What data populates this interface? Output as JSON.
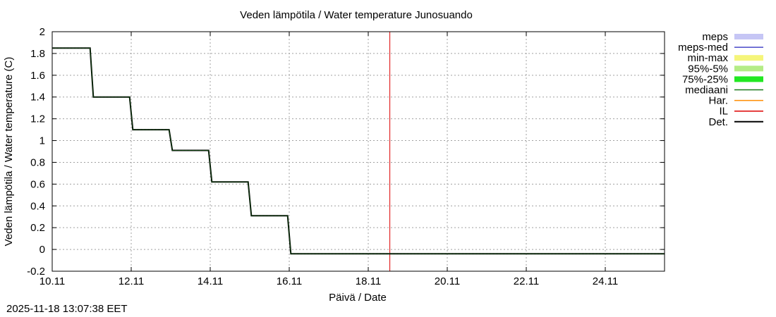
{
  "chart_data": {
    "type": "line",
    "title": "Veden lämpötila / Water temperature Junosuando",
    "xlabel": "Päivä / Date",
    "ylabel": "Veden lämpötila / Water temperature (C)",
    "xlim": [
      "2025-11-10",
      "2025-11-25 12:00"
    ],
    "ylim": [
      -0.2,
      2
    ],
    "grid": true,
    "legend_placement": "right",
    "x_ticks": [
      "10.11",
      "12.11",
      "14.11",
      "16.11",
      "18.11",
      "20.11",
      "22.11",
      "24.11"
    ],
    "y_ticks": [
      "-0.2",
      "0",
      "0.2",
      "0.4",
      "0.6",
      "0.8",
      "1",
      "1.2",
      "1.4",
      "1.6",
      "1.8",
      "2"
    ],
    "legend": [
      {
        "label": "meps",
        "color": "#c6c6f5",
        "style": "band"
      },
      {
        "label": "meps-med",
        "color": "#4848c8",
        "style": "line"
      },
      {
        "label": "min-max",
        "color": "#f5f57a",
        "style": "band"
      },
      {
        "label": "95%-5%",
        "color": "#b4ec86",
        "style": "band"
      },
      {
        "label": "75%-25%",
        "color": "#22e822",
        "style": "band"
      },
      {
        "label": "mediaani",
        "color": "#1a7a1a",
        "style": "line"
      },
      {
        "label": "Har.",
        "color": "#ff8c00",
        "style": "line"
      },
      {
        "label": "IL",
        "color": "#dd0000",
        "style": "line"
      },
      {
        "label": "Det.",
        "color": "#000000",
        "style": "line"
      }
    ],
    "series": [
      {
        "name": "Det.",
        "color": "#000000",
        "x": [
          "2025-11-10 00:00",
          "2025-11-10 23:00",
          "2025-11-11 01:00",
          "2025-11-11 23:00",
          "2025-11-12 01:00",
          "2025-11-12 23:00",
          "2025-11-13 01:00",
          "2025-11-13 23:00",
          "2025-11-14 01:00",
          "2025-11-14 23:00",
          "2025-11-15 01:00",
          "2025-11-15 23:00",
          "2025-11-16 01:00",
          "2025-11-25 12:00"
        ],
        "y": [
          1.85,
          1.85,
          1.4,
          1.4,
          1.1,
          1.1,
          0.91,
          0.91,
          0.62,
          0.62,
          0.31,
          0.31,
          -0.04,
          -0.04
        ]
      },
      {
        "name": "mediaani",
        "color": "#1a7a1a",
        "x": [
          "2025-11-10 00:00",
          "2025-11-10 23:00",
          "2025-11-11 01:00",
          "2025-11-11 23:00",
          "2025-11-12 01:00",
          "2025-11-12 23:00",
          "2025-11-13 01:00",
          "2025-11-13 23:00",
          "2025-11-14 01:00",
          "2025-11-14 23:00",
          "2025-11-15 01:00",
          "2025-11-15 23:00",
          "2025-11-16 01:00",
          "2025-11-25 12:00"
        ],
        "y": [
          1.85,
          1.85,
          1.4,
          1.4,
          1.1,
          1.1,
          0.91,
          0.91,
          0.62,
          0.62,
          0.31,
          0.31,
          -0.04,
          -0.04
        ]
      }
    ],
    "vertical_lines": [
      {
        "name": "IL",
        "x": "2025-11-18 13:07",
        "color": "#dd0000"
      }
    ]
  },
  "footer": {
    "timestamp": "2025-11-18 13:07:38 EET"
  }
}
